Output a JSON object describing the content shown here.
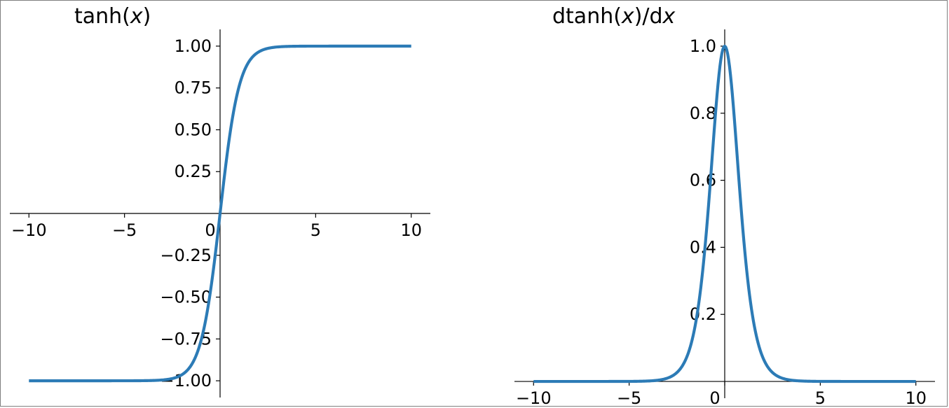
{
  "figure": {
    "background": "#ffffff",
    "border_color": "#7f7f7f",
    "line_color": "#2c7bb6",
    "axis_color": "#000000"
  },
  "chart_data": [
    {
      "id": "tanh",
      "type": "line",
      "title": "tanh(x)",
      "title_parts": [
        {
          "text": "tanh(",
          "italic": false
        },
        {
          "text": "x",
          "italic": true
        },
        {
          "text": ")",
          "italic": false
        }
      ],
      "xlabel": "",
      "ylabel": "",
      "xlim": [
        -11,
        11
      ],
      "ylim": [
        -1.1,
        1.1
      ],
      "xticks": [
        {
          "value": -10,
          "label": "−10"
        },
        {
          "value": -5,
          "label": "−5"
        },
        {
          "value": 0,
          "label": "0"
        },
        {
          "value": 5,
          "label": "5"
        },
        {
          "value": 10,
          "label": "10"
        }
      ],
      "yticks": [
        {
          "value": -1.0,
          "label": "−1.00"
        },
        {
          "value": -0.75,
          "label": "−0.75"
        },
        {
          "value": -0.5,
          "label": "−0.50"
        },
        {
          "value": -0.25,
          "label": "−0.25"
        },
        {
          "value": 0.25,
          "label": "0.25"
        },
        {
          "value": 0.5,
          "label": "0.50"
        },
        {
          "value": 0.75,
          "label": "0.75"
        },
        {
          "value": 1.0,
          "label": "1.00"
        }
      ],
      "grid": false,
      "spines": "centered",
      "series": [
        {
          "color": "#2c7bb6",
          "x": [
            -10,
            -8,
            -6,
            -4,
            -3,
            -2.5,
            -2,
            -1.5,
            -1.25,
            -1,
            -0.75,
            -0.5,
            -0.25,
            0,
            0.25,
            0.5,
            0.75,
            1,
            1.25,
            1.5,
            2,
            2.5,
            3,
            4,
            6,
            8,
            10
          ],
          "y": [
            -1.0,
            -1.0,
            -1.0,
            -0.9993,
            -0.9951,
            -0.9866,
            -0.964,
            -0.9051,
            -0.8483,
            -0.7616,
            -0.6351,
            -0.4621,
            -0.2449,
            0.0,
            0.2449,
            0.4621,
            0.6351,
            0.7616,
            0.8483,
            0.9051,
            0.964,
            0.9866,
            0.9951,
            0.9993,
            1.0,
            1.0,
            1.0
          ]
        }
      ]
    },
    {
      "id": "dtanh",
      "type": "line",
      "title": "dtanh(x)/dx",
      "title_parts": [
        {
          "text": "dtanh(",
          "italic": false
        },
        {
          "text": "x",
          "italic": true
        },
        {
          "text": ")/d",
          "italic": false
        },
        {
          "text": "x",
          "italic": true
        }
      ],
      "xlabel": "",
      "ylabel": "",
      "xlim": [
        -11,
        11
      ],
      "ylim": [
        -0.05,
        1.05
      ],
      "xticks": [
        {
          "value": -10,
          "label": "−10"
        },
        {
          "value": -5,
          "label": "−5"
        },
        {
          "value": 0,
          "label": "0"
        },
        {
          "value": 5,
          "label": "5"
        },
        {
          "value": 10,
          "label": "10"
        }
      ],
      "yticks": [
        {
          "value": 0.2,
          "label": "0.2"
        },
        {
          "value": 0.4,
          "label": "0.4"
        },
        {
          "value": 0.6,
          "label": "0.6"
        },
        {
          "value": 0.8,
          "label": "0.8"
        },
        {
          "value": 1.0,
          "label": "1.0"
        }
      ],
      "grid": false,
      "spines": "centered",
      "series": [
        {
          "color": "#2c7bb6",
          "x": [
            -10,
            -8,
            -6,
            -4,
            -3,
            -2.5,
            -2,
            -1.5,
            -1.25,
            -1,
            -0.75,
            -0.5,
            -0.25,
            0,
            0.25,
            0.5,
            0.75,
            1,
            1.25,
            1.5,
            2,
            2.5,
            3,
            4,
            6,
            8,
            10
          ],
          "y": [
            0.0,
            0.0,
            0.0,
            0.0013,
            0.0099,
            0.0266,
            0.0707,
            0.1807,
            0.2804,
            0.42,
            0.5966,
            0.7864,
            0.94,
            1.0,
            0.94,
            0.7864,
            0.5966,
            0.42,
            0.2804,
            0.1807,
            0.0707,
            0.0266,
            0.0099,
            0.0013,
            0.0,
            0.0,
            0.0
          ]
        }
      ]
    }
  ]
}
